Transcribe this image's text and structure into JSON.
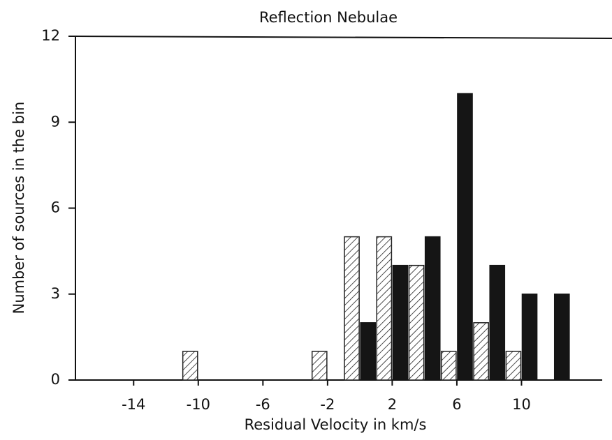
{
  "chart_data": {
    "type": "bar",
    "title": "Reflection Nebulae",
    "xlabel": "Residual Velocity in km/s",
    "ylabel": "Number of sources in the bin",
    "x": [
      -10,
      -8,
      -6,
      -4,
      -2,
      0,
      2,
      4,
      6,
      8,
      10,
      12
    ],
    "series": [
      {
        "color": "#222222",
        "fill": "hatch",
        "values": [
          1,
          0,
          0,
          0,
          1,
          5,
          5,
          4,
          1,
          2,
          1,
          0
        ]
      },
      {
        "color": "#151515",
        "fill": "solid",
        "values": [
          0,
          0,
          0,
          0,
          0,
          2,
          4,
          5,
          10,
          4,
          3,
          3
        ]
      }
    ],
    "xlim": [
      -17.6,
      15.6
    ],
    "ylim": [
      0,
      12
    ],
    "xticks": [
      -14,
      -10,
      -6,
      -2,
      2,
      6,
      10
    ],
    "yticks": [
      0,
      3,
      6,
      9,
      12
    ],
    "grid": false
  }
}
